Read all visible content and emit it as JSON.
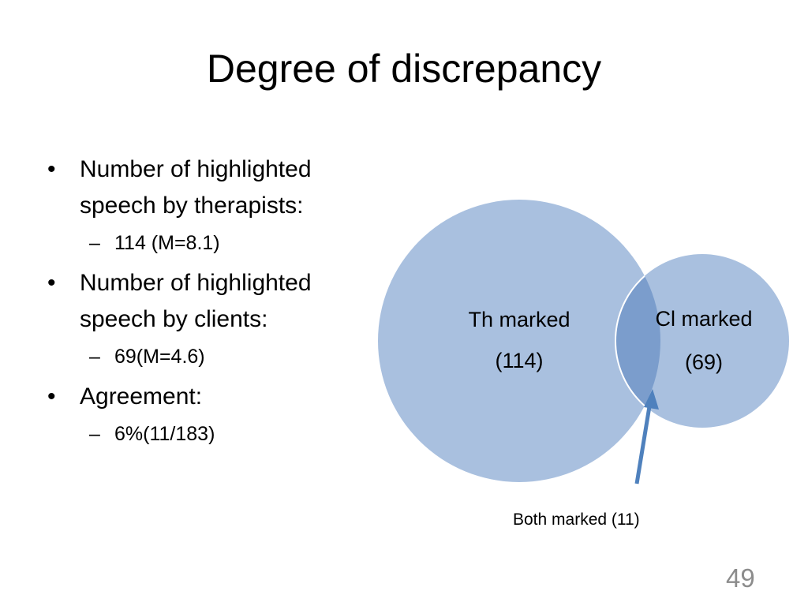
{
  "slide": {
    "title": "Degree of discrepancy",
    "page_number": "49"
  },
  "bullets": [
    {
      "text": "Number of highlighted speech by therapists:",
      "sub": "114 (M=8.1)"
    },
    {
      "text": "Number of highlighted speech by clients:",
      "sub": "69(M=4.6)"
    },
    {
      "text": "Agreement:",
      "sub": "6%(11/183)"
    }
  ],
  "venn": {
    "therapist": {
      "label": "Th marked",
      "count": "(114)"
    },
    "client": {
      "label": "Cl marked",
      "count": "(69)"
    },
    "overlap_caption": "Both marked (11)",
    "colors": {
      "circle": "#a9c0df",
      "overlap": "#7b9dcc",
      "arrow": "#4f81bd"
    }
  }
}
